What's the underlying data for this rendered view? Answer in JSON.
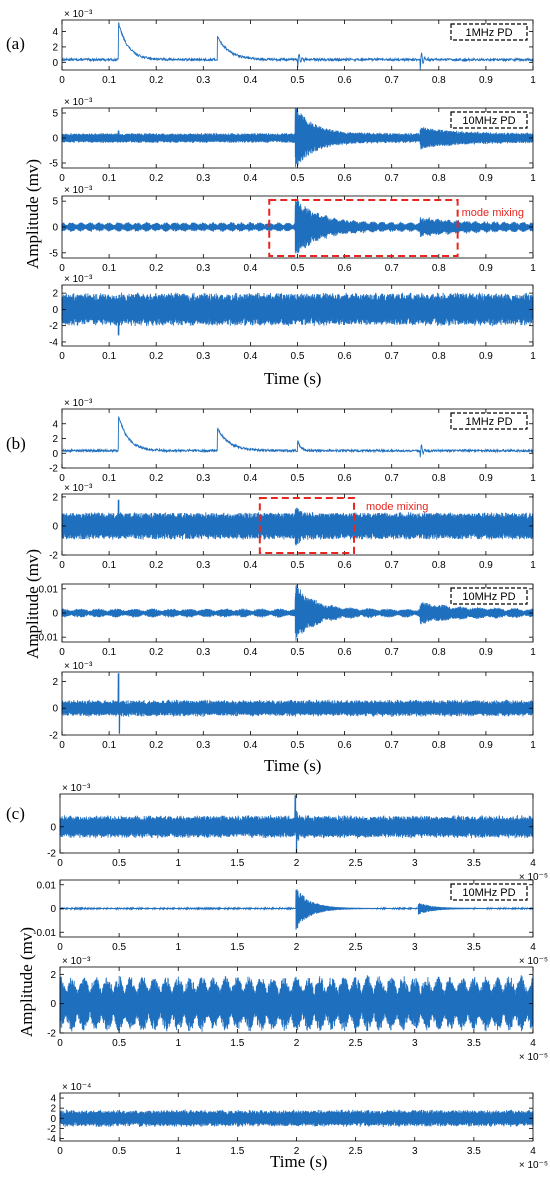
{
  "colors": {
    "signal": "#1f6fbf",
    "axis": "#000000",
    "annotation": "#e8251f",
    "legend_box": "#000000"
  },
  "groups": [
    {
      "label": "(a)",
      "ylabel": "Amplitude (mv)",
      "xlabel": "Time (s)"
    },
    {
      "label": "(b)",
      "ylabel": "Amplitude (mv)",
      "xlabel": "Time (s)"
    },
    {
      "label": "(c)",
      "ylabel": "Amplitude (mv)",
      "xlabel": "Time (s)"
    }
  ],
  "chart_data": [
    {
      "type": "line",
      "group": "(a)",
      "exponent": "× 10⁻³",
      "xlim": [
        0,
        1
      ],
      "ylim": [
        -1,
        5.5
      ],
      "xticks": [
        "0",
        "0.1",
        "0.2",
        "0.3",
        "0.4",
        "0.5",
        "0.6",
        "0.7",
        "0.8",
        "0.9",
        "1"
      ],
      "yticks": [
        {
          "v": 4,
          "t": "4"
        },
        {
          "v": 2,
          "t": "2"
        },
        {
          "v": 0,
          "t": "0"
        }
      ],
      "legend": "1MHz PD",
      "signal": {
        "kind": "pd",
        "base": 0.35,
        "noise": 0.15,
        "events": [
          [
            0.12,
            4.8,
            0.02
          ],
          [
            0.33,
            3.0,
            0.025
          ],
          [
            0.5,
            -1.2,
            0.006
          ],
          [
            0.76,
            -1.5,
            0.006
          ]
        ]
      }
    },
    {
      "type": "line",
      "group": "(a)",
      "exponent": "× 10⁻³",
      "xlim": [
        0,
        1
      ],
      "ylim": [
        -6,
        6
      ],
      "xticks": [
        "0",
        "0.1",
        "0.2",
        "0.3",
        "0.4",
        "0.5",
        "0.6",
        "0.7",
        "0.8",
        "0.9",
        "1"
      ],
      "yticks": [
        {
          "v": 5,
          "t": "5"
        },
        {
          "v": 0,
          "t": "0"
        },
        {
          "v": -5,
          "t": "-5"
        }
      ],
      "legend": "10MHz PD",
      "signal": {
        "kind": "burst",
        "base": 0.9,
        "noise": 0.25,
        "bursts": [
          [
            0.495,
            5.5,
            0.04
          ],
          [
            0.76,
            1.3,
            0.08
          ]
        ],
        "spikes": [
          [
            0.12,
            1.5
          ]
        ]
      }
    },
    {
      "type": "line",
      "group": "(a)",
      "exponent": "× 10⁻³",
      "xlim": [
        0,
        1
      ],
      "ylim": [
        -6,
        6
      ],
      "xticks": [
        "0",
        "0.1",
        "0.2",
        "0.3",
        "0.4",
        "0.5",
        "0.6",
        "0.7",
        "0.8",
        "0.9",
        "1"
      ],
      "yticks": [
        {
          "v": 5,
          "t": "5"
        },
        {
          "v": 0,
          "t": "0"
        },
        {
          "v": -5,
          "t": "-5"
        }
      ],
      "annotation": {
        "text": "mode mixing",
        "x0": 0.44,
        "x1": 0.84
      },
      "signal": {
        "kind": "beat",
        "base": 0.9,
        "beat": 50,
        "noise": 0.15,
        "bursts": [
          [
            0.495,
            5.0,
            0.05
          ],
          [
            0.76,
            1.2,
            0.08
          ]
        ]
      }
    },
    {
      "type": "line",
      "group": "(a)",
      "exponent": "× 10⁻³",
      "xlim": [
        0,
        1
      ],
      "ylim": [
        -4.5,
        3
      ],
      "xticks": [
        "0",
        "0.1",
        "0.2",
        "0.3",
        "0.4",
        "0.5",
        "0.6",
        "0.7",
        "0.8",
        "0.9",
        "1"
      ],
      "yticks": [
        {
          "v": 2,
          "t": "2"
        },
        {
          "v": 0,
          "t": "0"
        },
        {
          "v": -2,
          "t": "-2"
        },
        {
          "v": -4,
          "t": "-4"
        }
      ],
      "signal": {
        "kind": "noise",
        "base": 1.9,
        "noise": 0.4,
        "spikes": [
          [
            0.12,
            -3.2
          ]
        ]
      }
    },
    {
      "type": "line",
      "group": "(b)",
      "exponent": "× 10⁻³",
      "xlim": [
        0,
        1
      ],
      "ylim": [
        -2,
        6
      ],
      "xticks": [
        "0",
        "0.1",
        "0.2",
        "0.3",
        "0.4",
        "0.5",
        "0.6",
        "0.7",
        "0.8",
        "0.9",
        "1"
      ],
      "yticks": [
        {
          "v": 4,
          "t": "4"
        },
        {
          "v": 2,
          "t": "2"
        },
        {
          "v": 0,
          "t": "0"
        },
        {
          "v": -2,
          "t": "-2"
        }
      ],
      "legend": "1MHz PD",
      "signal": {
        "kind": "pd",
        "base": 0.35,
        "noise": 0.15,
        "events": [
          [
            0.12,
            4.8,
            0.02
          ],
          [
            0.33,
            3.0,
            0.025
          ],
          [
            0.5,
            1.5,
            0.006
          ],
          [
            0.76,
            -1.2,
            0.006
          ]
        ]
      }
    },
    {
      "type": "line",
      "group": "(b)",
      "exponent": "× 10⁻³",
      "xlim": [
        0,
        1
      ],
      "ylim": [
        -2,
        2.2
      ],
      "xticks": [
        "0",
        "0.1",
        "0.2",
        "0.3",
        "0.4",
        "0.5",
        "0.6",
        "0.7",
        "0.8",
        "0.9",
        "1"
      ],
      "yticks": [
        {
          "v": 2,
          "t": "2"
        },
        {
          "v": 0,
          "t": "0"
        },
        {
          "v": -2,
          "t": "-2"
        }
      ],
      "annotation": {
        "text": "mode mixing",
        "x0": 0.42,
        "x1": 0.62,
        "label_right": true
      },
      "signal": {
        "kind": "burst",
        "base": 0.9,
        "noise": 0.1,
        "bursts": [
          [
            0.495,
            0.6,
            0.01
          ]
        ],
        "spikes": [
          [
            0.12,
            1.8
          ]
        ]
      }
    },
    {
      "type": "line",
      "group": "(b)",
      "exponent": "",
      "xlim": [
        0,
        1
      ],
      "ylim": [
        -0.012,
        0.012
      ],
      "xticks": [
        "0",
        "0.1",
        "0.2",
        "0.3",
        "0.4",
        "0.5",
        "0.6",
        "0.7",
        "0.8",
        "0.9",
        "1"
      ],
      "yticks": [
        {
          "v": 0.01,
          "t": "0.01"
        },
        {
          "v": 0,
          "t": "0"
        },
        {
          "v": -0.01,
          "t": "-0.01"
        }
      ],
      "legend": "10MHz PD",
      "signal": {
        "kind": "beat",
        "base": 0.0018,
        "beat": 26,
        "noise": 0.0004,
        "bursts": [
          [
            0.495,
            0.0105,
            0.04
          ],
          [
            0.76,
            0.003,
            0.08
          ]
        ]
      }
    },
    {
      "type": "line",
      "group": "(b)",
      "exponent": "× 10⁻³",
      "xlim": [
        0,
        1
      ],
      "ylim": [
        -2,
        2.7
      ],
      "xticks": [
        "0",
        "0.1",
        "0.2",
        "0.3",
        "0.4",
        "0.5",
        "0.6",
        "0.7",
        "0.8",
        "0.9",
        "1"
      ],
      "yticks": [
        {
          "v": 2,
          "t": "2"
        },
        {
          "v": 0,
          "t": "0"
        },
        {
          "v": -2,
          "t": "-2"
        }
      ],
      "signal": {
        "kind": "noise",
        "base": 0.55,
        "noise": 0.2,
        "spikes": [
          [
            0.12,
            2.6
          ],
          [
            0.122,
            -1.9
          ]
        ]
      }
    },
    {
      "type": "line",
      "group": "(c)",
      "exponent": "× 10⁻³",
      "xexponent": "× 10⁻⁵",
      "xlim": [
        0,
        4
      ],
      "ylim": [
        -2,
        2.5
      ],
      "xticks": [
        "0",
        "0.5",
        "1",
        "1.5",
        "2",
        "2.5",
        "3",
        "3.5",
        "4"
      ],
      "yticks": [
        {
          "v": 0,
          "t": "0"
        },
        {
          "v": -2,
          "t": "-2"
        }
      ],
      "signal": {
        "kind": "burst",
        "base": 0.8,
        "noise": 0.2,
        "bursts": [
          [
            2.0,
            0.5,
            0.02
          ]
        ],
        "spikes": [
          [
            1.99,
            2.4
          ],
          [
            2.0,
            -2.0
          ]
        ]
      }
    },
    {
      "type": "line",
      "group": "(c)",
      "exponent": "",
      "xexponent": "× 10⁻⁵",
      "xlim": [
        0,
        4
      ],
      "ylim": [
        -0.012,
        0.012
      ],
      "xticks": [
        "0",
        "0.5",
        "1",
        "1.5",
        "2",
        "2.5",
        "3",
        "3.5",
        "4"
      ],
      "yticks": [
        {
          "v": 0.01,
          "t": "0.01"
        },
        {
          "v": 0,
          "t": "0"
        },
        {
          "v": -0.01,
          "t": "-0.01"
        }
      ],
      "legend": "10MHz PD",
      "signal": {
        "kind": "burst",
        "base": 0.0002,
        "noise": 5e-05,
        "bursts": [
          [
            1.995,
            0.009,
            0.12
          ],
          [
            3.03,
            0.0025,
            0.12
          ]
        ]
      }
    },
    {
      "type": "line",
      "group": "(c)",
      "exponent": "× 10⁻³",
      "xexponent": "× 10⁻⁵",
      "xlim": [
        0,
        4
      ],
      "ylim": [
        -2,
        2.5
      ],
      "xticks": [
        "0",
        "0.5",
        "1",
        "1.5",
        "2",
        "2.5",
        "3",
        "3.5",
        "4"
      ],
      "yticks": [
        {
          "v": 2,
          "t": "2"
        },
        {
          "v": 0,
          "t": "0"
        },
        {
          "v": -2,
          "t": "-2"
        }
      ],
      "signal": {
        "kind": "beat",
        "base": 1.9,
        "beat": 40,
        "noise": 0.1,
        "bursts": []
      }
    },
    {
      "type": "line",
      "group": "(c)",
      "exponent": "× 10⁻⁴",
      "xexponent": "× 10⁻⁵",
      "xlim": [
        0,
        4
      ],
      "ylim": [
        -4.5,
        5
      ],
      "xticks": [
        "0",
        "0.5",
        "1",
        "1.5",
        "2",
        "2.5",
        "3",
        "3.5",
        "4"
      ],
      "yticks": [
        {
          "v": 4,
          "t": "4"
        },
        {
          "v": 2,
          "t": "2"
        },
        {
          "v": 0,
          "t": "0"
        },
        {
          "v": -2,
          "t": "-2"
        },
        {
          "v": -4,
          "t": "-4"
        }
      ],
      "signal": {
        "kind": "noise",
        "base": 1.5,
        "noise": 0.5,
        "spikes": []
      }
    }
  ]
}
